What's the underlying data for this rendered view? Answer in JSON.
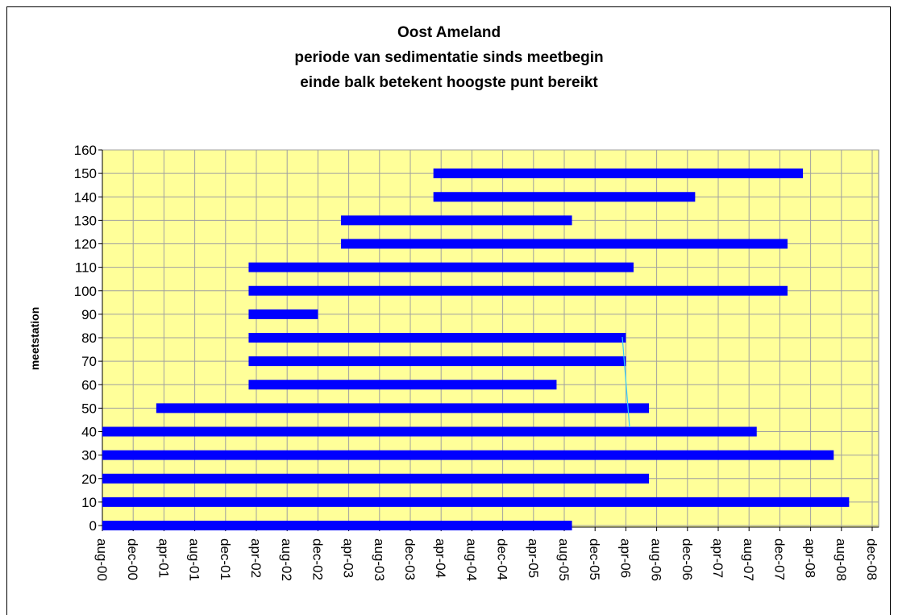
{
  "chart_data": {
    "type": "floating-bar",
    "title": [
      "Oost Ameland",
      "periode van sedimentatie sinds meetbegin",
      "einde balk betekent hoogste punt bereikt"
    ],
    "ylabel": "meetstation",
    "color": "#0000ff",
    "ylim": [
      0,
      160
    ],
    "yticks": [
      0,
      10,
      20,
      30,
      40,
      50,
      60,
      70,
      80,
      90,
      100,
      110,
      120,
      130,
      140,
      150,
      160
    ],
    "xlim": [
      "2000-08",
      "2008-12"
    ],
    "xticks": [
      {
        "value": "2000-08",
        "label": "aug-00"
      },
      {
        "value": "2000-12",
        "label": "dec-00"
      },
      {
        "value": "2001-04",
        "label": "apr-01"
      },
      {
        "value": "2001-08",
        "label": "aug-01"
      },
      {
        "value": "2001-12",
        "label": "dec-01"
      },
      {
        "value": "2002-04",
        "label": "apr-02"
      },
      {
        "value": "2002-08",
        "label": "aug-02"
      },
      {
        "value": "2002-12",
        "label": "dec-02"
      },
      {
        "value": "2003-04",
        "label": "apr-03"
      },
      {
        "value": "2003-08",
        "label": "aug-03"
      },
      {
        "value": "2003-12",
        "label": "dec-03"
      },
      {
        "value": "2004-04",
        "label": "apr-04"
      },
      {
        "value": "2004-08",
        "label": "aug-04"
      },
      {
        "value": "2004-12",
        "label": "dec-04"
      },
      {
        "value": "2005-04",
        "label": "apr-05"
      },
      {
        "value": "2005-08",
        "label": "aug-05"
      },
      {
        "value": "2005-12",
        "label": "dec-05"
      },
      {
        "value": "2006-04",
        "label": "apr-06"
      },
      {
        "value": "2006-08",
        "label": "aug-06"
      },
      {
        "value": "2006-12",
        "label": "dec-06"
      },
      {
        "value": "2007-04",
        "label": "apr-07"
      },
      {
        "value": "2007-08",
        "label": "aug-07"
      },
      {
        "value": "2007-12",
        "label": "dec-07"
      },
      {
        "value": "2008-04",
        "label": "apr-08"
      },
      {
        "value": "2008-08",
        "label": "aug-08"
      },
      {
        "value": "2008-12",
        "label": "dec-08"
      }
    ],
    "grid": true,
    "bars": [
      {
        "y": 0,
        "start": "2000-08",
        "end": "2005-09"
      },
      {
        "y": 10,
        "start": "2000-08",
        "end": "2008-09"
      },
      {
        "y": 20,
        "start": "2000-08",
        "end": "2006-07"
      },
      {
        "y": 30,
        "start": "2000-08",
        "end": "2008-07"
      },
      {
        "y": 40,
        "start": "2000-08",
        "end": "2007-09"
      },
      {
        "y": 50,
        "start": "2001-03",
        "end": "2006-07"
      },
      {
        "y": 60,
        "start": "2002-03",
        "end": "2005-07"
      },
      {
        "y": 70,
        "start": "2002-03",
        "end": "2006-04"
      },
      {
        "y": 80,
        "start": "2002-03",
        "end": "2006-04"
      },
      {
        "y": 90,
        "start": "2002-03",
        "end": "2002-12"
      },
      {
        "y": 100,
        "start": "2002-03",
        "end": "2008-01"
      },
      {
        "y": 110,
        "start": "2002-03",
        "end": "2006-05"
      },
      {
        "y": 120,
        "start": "2003-03",
        "end": "2008-01"
      },
      {
        "y": 130,
        "start": "2003-03",
        "end": "2005-09"
      },
      {
        "y": 140,
        "start": "2004-03",
        "end": "2007-01"
      },
      {
        "y": 150,
        "start": "2004-03",
        "end": "2008-03"
      }
    ]
  }
}
